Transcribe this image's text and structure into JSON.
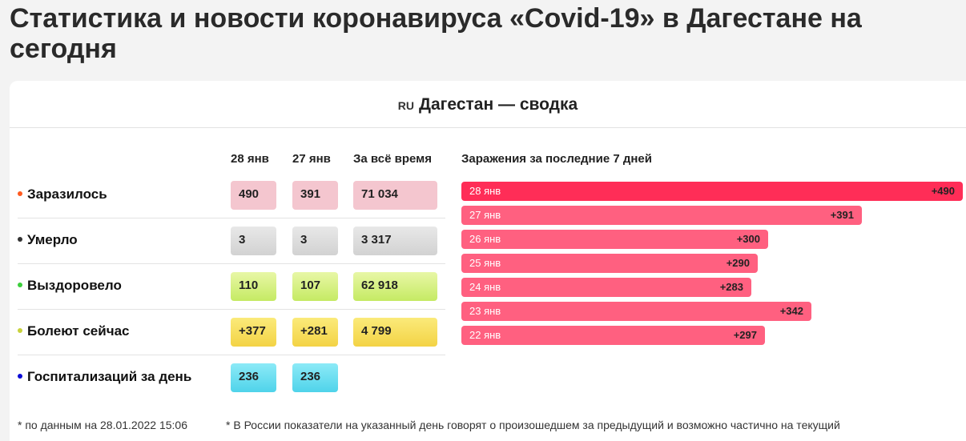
{
  "page": {
    "title": "Статистика и новости коронавируса «Covid-19» в Дагестане на сегодня"
  },
  "summary": {
    "flag": "RU",
    "title": "Дагестан — сводка",
    "columns": [
      "28 янв",
      "27 янв",
      "За всё время"
    ],
    "rows": [
      {
        "label": "Заразилось",
        "dot_color": "#ff5a1f",
        "values": [
          "490",
          "391",
          "71 034"
        ],
        "style": "red"
      },
      {
        "label": "Умерло",
        "dot_color": "#333333",
        "values": [
          "3",
          "3",
          "3 317"
        ],
        "style": "gray"
      },
      {
        "label": "Выздоровело",
        "dot_color": "#3ccf3c",
        "values": [
          "110",
          "107",
          "62 918"
        ],
        "style": "green"
      },
      {
        "label": "Болеют сейчас",
        "dot_color": "#c8d23c",
        "values": [
          "+377",
          "+281",
          "4 799"
        ],
        "style": "yellow"
      },
      {
        "label": "Госпитализаций за день",
        "dot_color": "#0b0bd6",
        "values": [
          "236",
          "236"
        ],
        "style": "cyan"
      }
    ]
  },
  "chart_data": {
    "type": "bar",
    "title": "Заражения за последние 7 дней",
    "categories": [
      "28 янв",
      "27 янв",
      "26 янв",
      "25 янв",
      "24 янв",
      "23 янв",
      "22 янв"
    ],
    "values": [
      490,
      391,
      300,
      290,
      283,
      342,
      297
    ],
    "labels": [
      "+490",
      "+391",
      "+300",
      "+290",
      "+283",
      "+342",
      "+297"
    ],
    "colors": {
      "latest": "#ff2d57",
      "other": "#ff6080"
    }
  },
  "footnotes": {
    "source": "* по данным на 28.01.2022 15:06",
    "note": "* В России показатели на указанный день говорят о произошедшем за предыдущий и возможно частично на текущий"
  }
}
